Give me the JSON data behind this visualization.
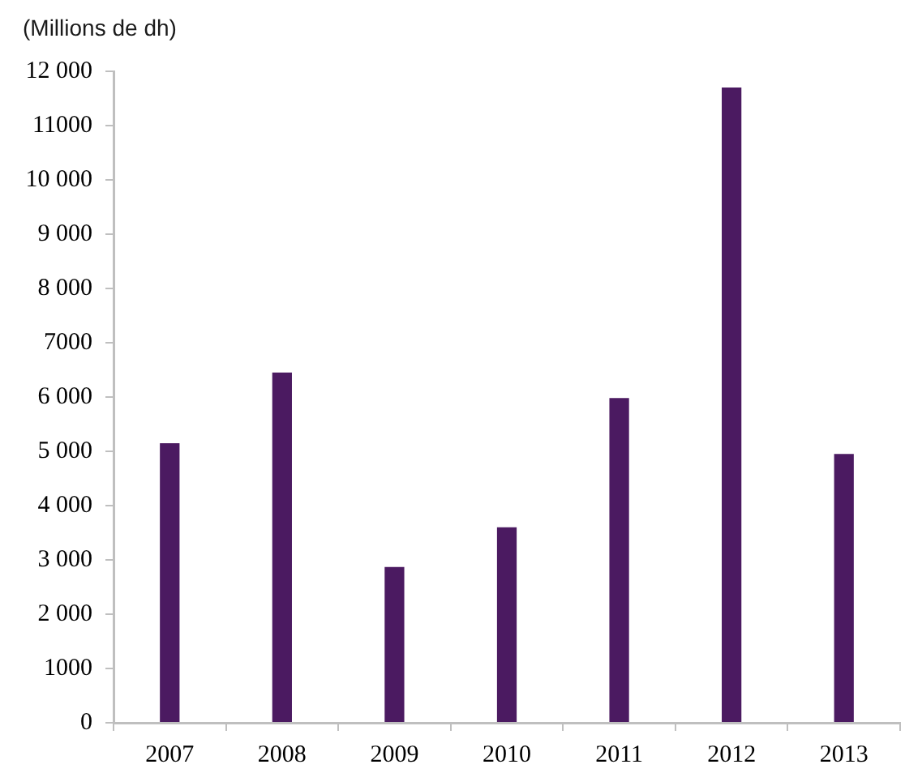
{
  "chart_data": {
    "type": "bar",
    "ylabel": "(Millions de dh)",
    "categories": [
      "2007",
      "2008",
      "2009",
      "2010",
      "2011",
      "2012",
      "2013"
    ],
    "values": [
      5150,
      6450,
      2870,
      3600,
      5980,
      11700,
      4950
    ],
    "color": "#4b1a61",
    "ylim": [
      0,
      12000
    ],
    "yticks": [
      0,
      {
        "value": 1000,
        "label": "1000"
      },
      {
        "value": 2000,
        "label": "2 000"
      },
      {
        "value": 3000,
        "label": "3 000"
      },
      {
        "value": 4000,
        "label": "4 000"
      },
      {
        "value": 5000,
        "label": "5 000"
      },
      {
        "value": 6000,
        "label": "6 000"
      },
      {
        "value": 7000,
        "label": "7000"
      },
      {
        "value": 8000,
        "label": "8 000"
      },
      {
        "value": 9000,
        "label": "9 000"
      },
      {
        "value": 10000,
        "label": "10 000"
      },
      {
        "value": 11000,
        "label": "11000"
      },
      {
        "value": 12000,
        "label": "12 000"
      }
    ],
    "grid": false
  }
}
